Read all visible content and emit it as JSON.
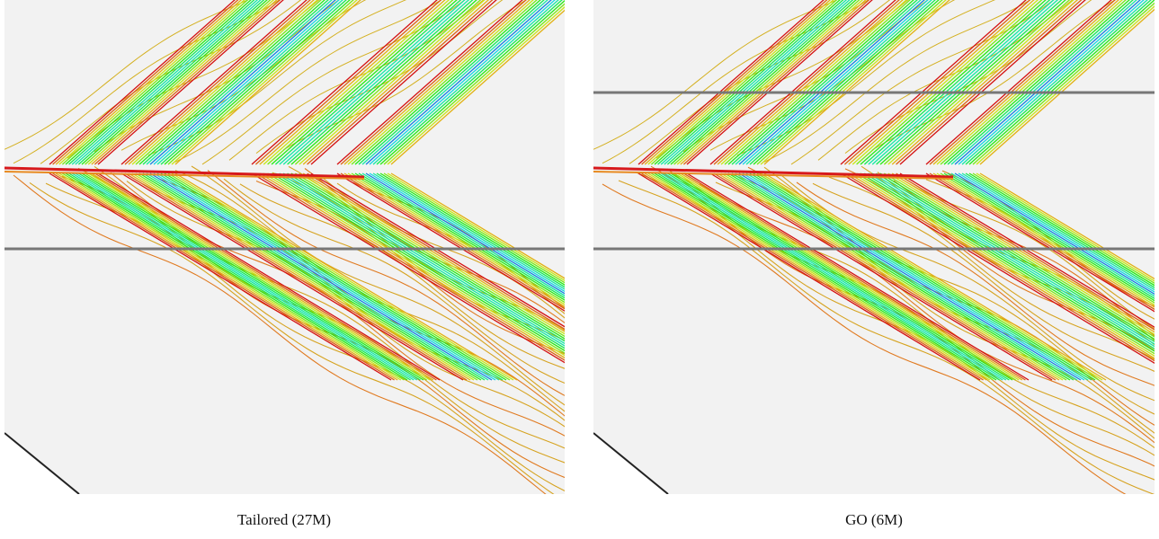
{
  "panels": [
    {
      "caption": "Tailored (27M)"
    },
    {
      "caption": "GO (6M)"
    }
  ]
}
